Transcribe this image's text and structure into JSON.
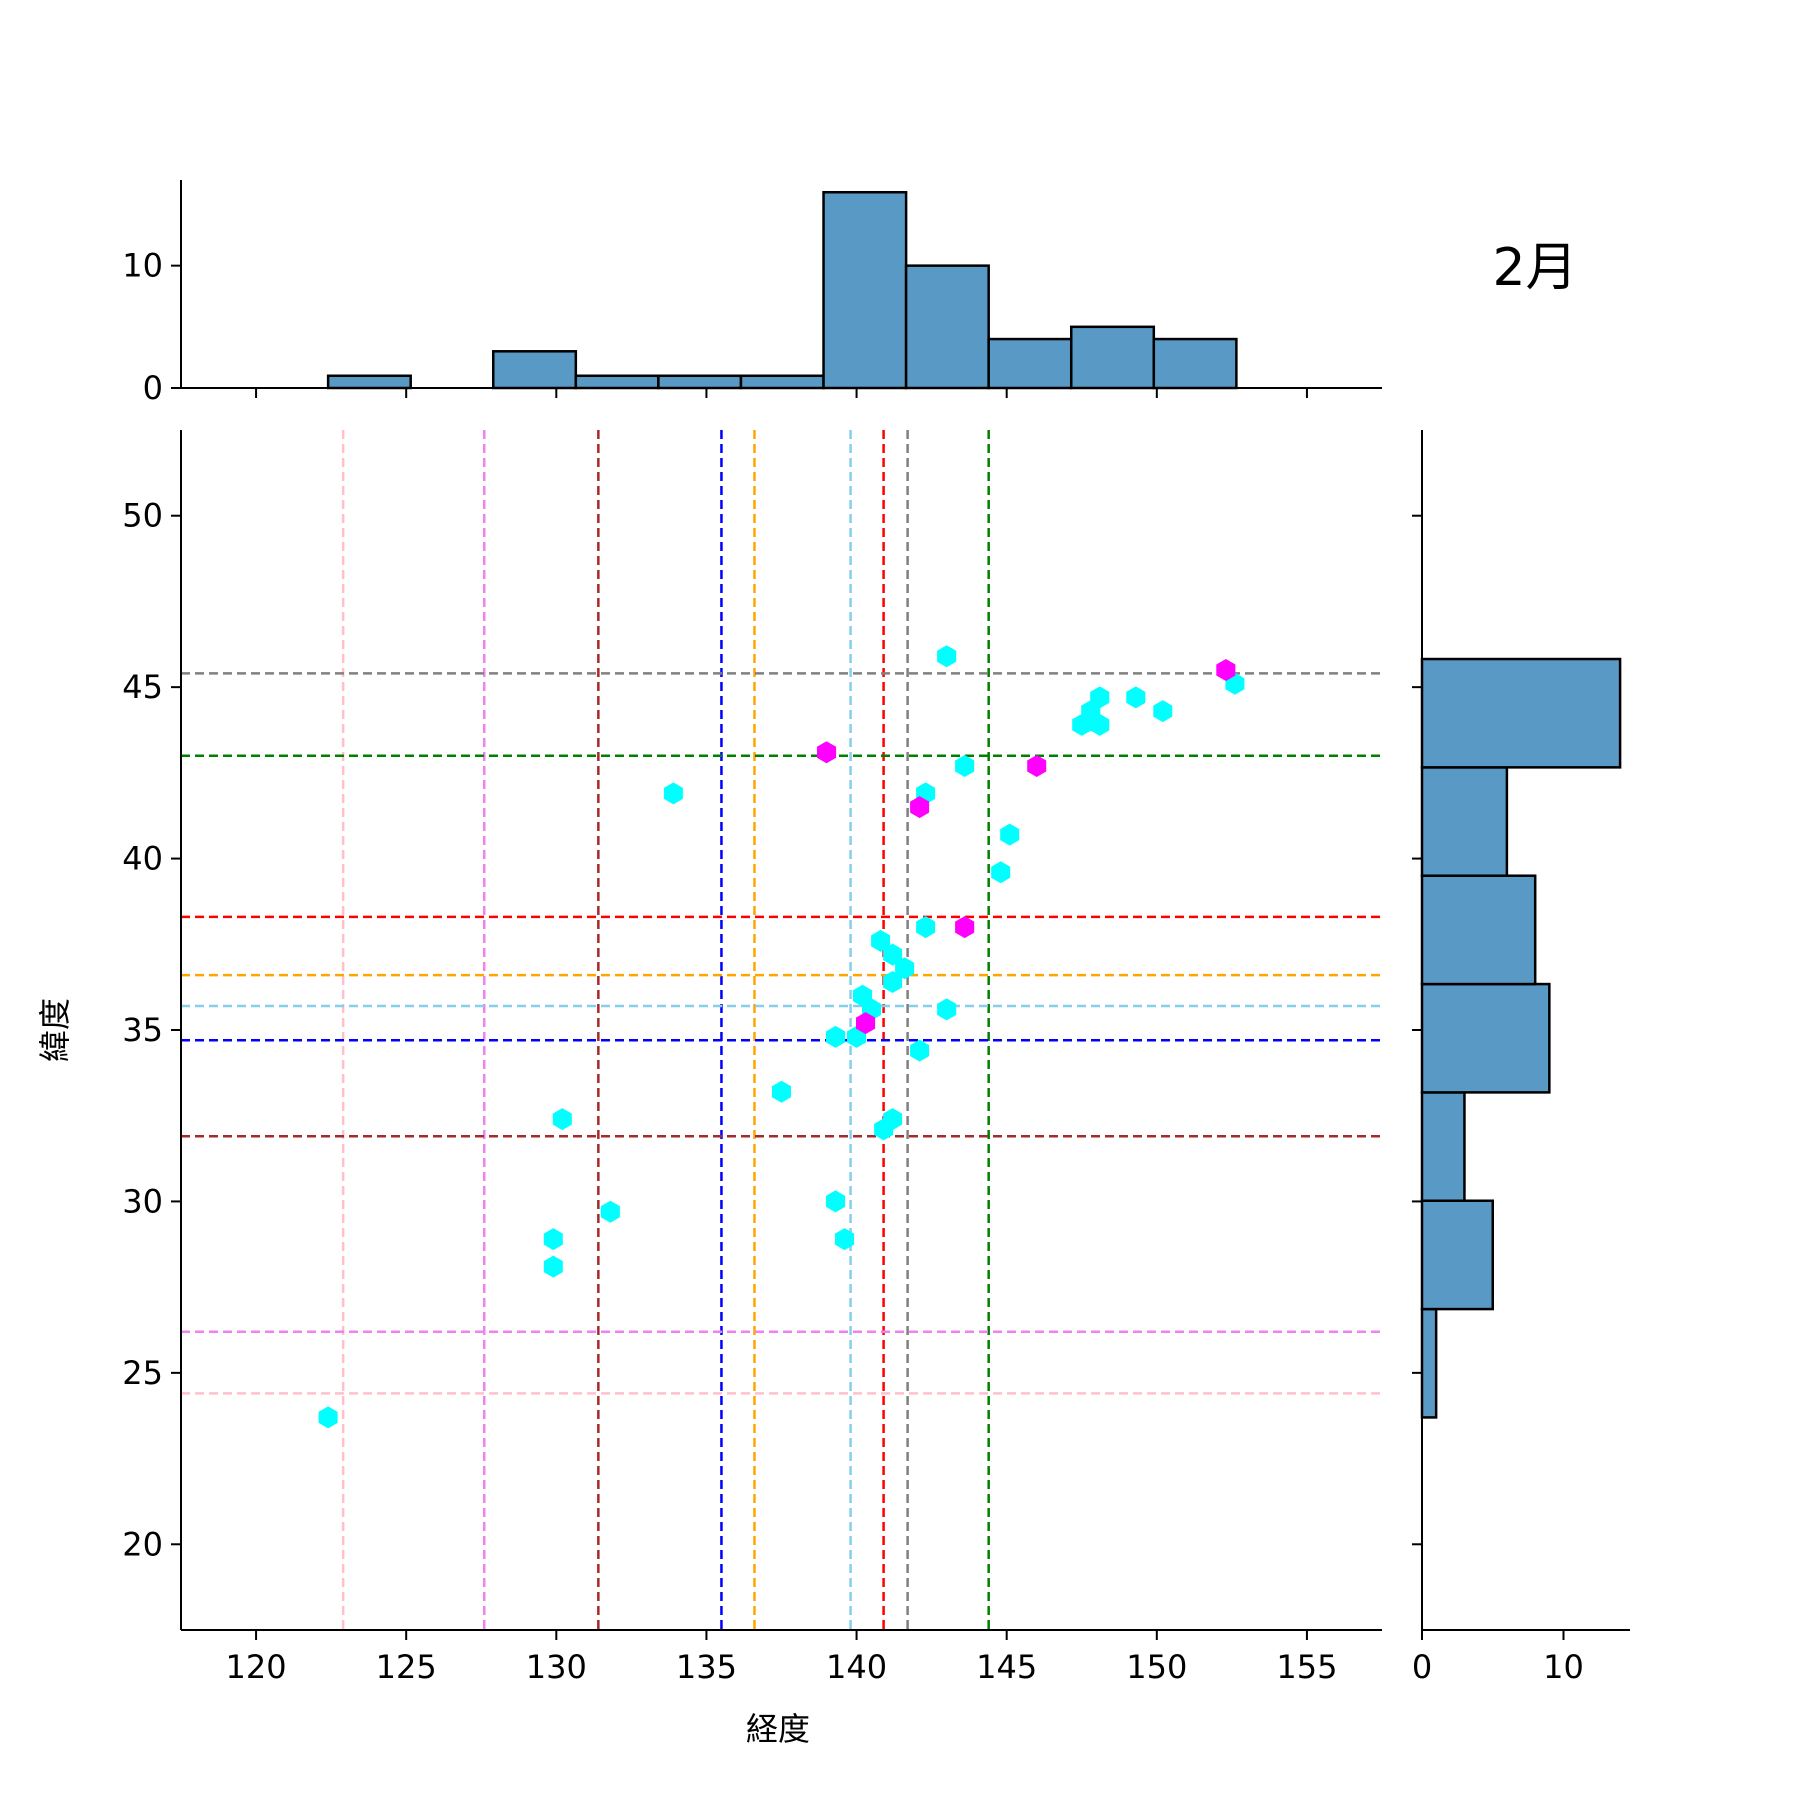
{
  "chart_data": {
    "type": "scatter",
    "title": "2月",
    "xlabel": "経度",
    "ylabel": "緯度",
    "xlim": [
      117.5,
      157.5
    ],
    "ylim": [
      17.5,
      52.5
    ],
    "xticks": [
      120,
      125,
      130,
      135,
      140,
      145,
      150,
      155
    ],
    "yticks": [
      20,
      25,
      30,
      35,
      40,
      45,
      50
    ],
    "colors": {
      "point_primary": "#00ffff",
      "point_secondary": "#ff00ff",
      "histogram": "#5899c5"
    },
    "series": [
      {
        "color": "#00ffff",
        "points": [
          [
            122.4,
            23.7
          ],
          [
            129.9,
            28.1
          ],
          [
            129.9,
            28.9
          ],
          [
            130.2,
            32.4
          ],
          [
            131.8,
            29.7
          ],
          [
            133.9,
            41.9
          ],
          [
            137.5,
            33.2
          ],
          [
            139.3,
            30.0
          ],
          [
            139.6,
            28.9
          ],
          [
            139.3,
            34.8
          ],
          [
            140.0,
            34.8
          ],
          [
            140.2,
            36.0
          ],
          [
            140.5,
            35.6
          ],
          [
            140.8,
            37.6
          ],
          [
            140.9,
            32.1
          ],
          [
            141.2,
            32.4
          ],
          [
            141.2,
            37.2
          ],
          [
            141.2,
            36.4
          ],
          [
            141.6,
            36.8
          ],
          [
            142.1,
            34.4
          ],
          [
            142.3,
            38.0
          ],
          [
            142.3,
            41.9
          ],
          [
            143.0,
            35.6
          ],
          [
            143.0,
            45.9
          ],
          [
            143.6,
            42.7
          ],
          [
            144.8,
            39.6
          ],
          [
            145.1,
            40.7
          ],
          [
            147.5,
            43.9
          ],
          [
            147.8,
            44.3
          ],
          [
            148.1,
            43.9
          ],
          [
            148.1,
            44.7
          ],
          [
            149.3,
            44.7
          ],
          [
            150.2,
            44.3
          ],
          [
            152.6,
            45.1
          ]
        ]
      },
      {
        "color": "#ff00ff",
        "points": [
          [
            139.0,
            43.1
          ],
          [
            140.3,
            35.2
          ],
          [
            142.1,
            41.5
          ],
          [
            143.6,
            38.0
          ],
          [
            146.0,
            42.7
          ],
          [
            152.3,
            45.5
          ]
        ]
      }
    ],
    "vertical_lines": [
      {
        "x": 122.9,
        "color": "#ffc0cb"
      },
      {
        "x": 127.6,
        "color": "#ee82ee"
      },
      {
        "x": 131.4,
        "color": "#a52a2a"
      },
      {
        "x": 135.5,
        "color": "#0000ff"
      },
      {
        "x": 136.6,
        "color": "#ffa500"
      },
      {
        "x": 139.8,
        "color": "#87ceeb"
      },
      {
        "x": 140.9,
        "color": "#ff0000"
      },
      {
        "x": 141.7,
        "color": "#808080"
      },
      {
        "x": 144.4,
        "color": "#008000"
      }
    ],
    "horizontal_lines": [
      {
        "y": 45.4,
        "color": "#808080"
      },
      {
        "y": 43.0,
        "color": "#008000"
      },
      {
        "y": 38.3,
        "color": "#ff0000"
      },
      {
        "y": 36.6,
        "color": "#ffa500"
      },
      {
        "y": 35.7,
        "color": "#87ceeb"
      },
      {
        "y": 34.7,
        "color": "#0000ff"
      },
      {
        "y": 31.9,
        "color": "#a52a2a"
      },
      {
        "y": 26.2,
        "color": "#ee82ee"
      },
      {
        "y": 24.4,
        "color": "#ffc0cb"
      }
    ],
    "x_histogram": {
      "bin_edges": [
        122.4,
        125.15,
        127.9,
        130.65,
        133.4,
        136.15,
        138.9,
        141.65,
        144.4,
        147.15,
        149.9,
        152.65
      ],
      "counts": [
        1,
        0,
        3,
        1,
        1,
        1,
        16,
        10,
        4,
        5,
        4
      ],
      "ylim": [
        0,
        17
      ],
      "yticks": [
        0,
        10
      ]
    },
    "y_histogram": {
      "bin_edges": [
        23.7,
        26.86,
        30.02,
        33.18,
        36.34,
        39.5,
        42.66,
        45.82
      ],
      "counts": [
        1,
        5,
        3,
        9,
        8,
        6,
        14
      ],
      "xlim": [
        0,
        14.7
      ],
      "xticks": [
        0,
        10
      ]
    }
  }
}
